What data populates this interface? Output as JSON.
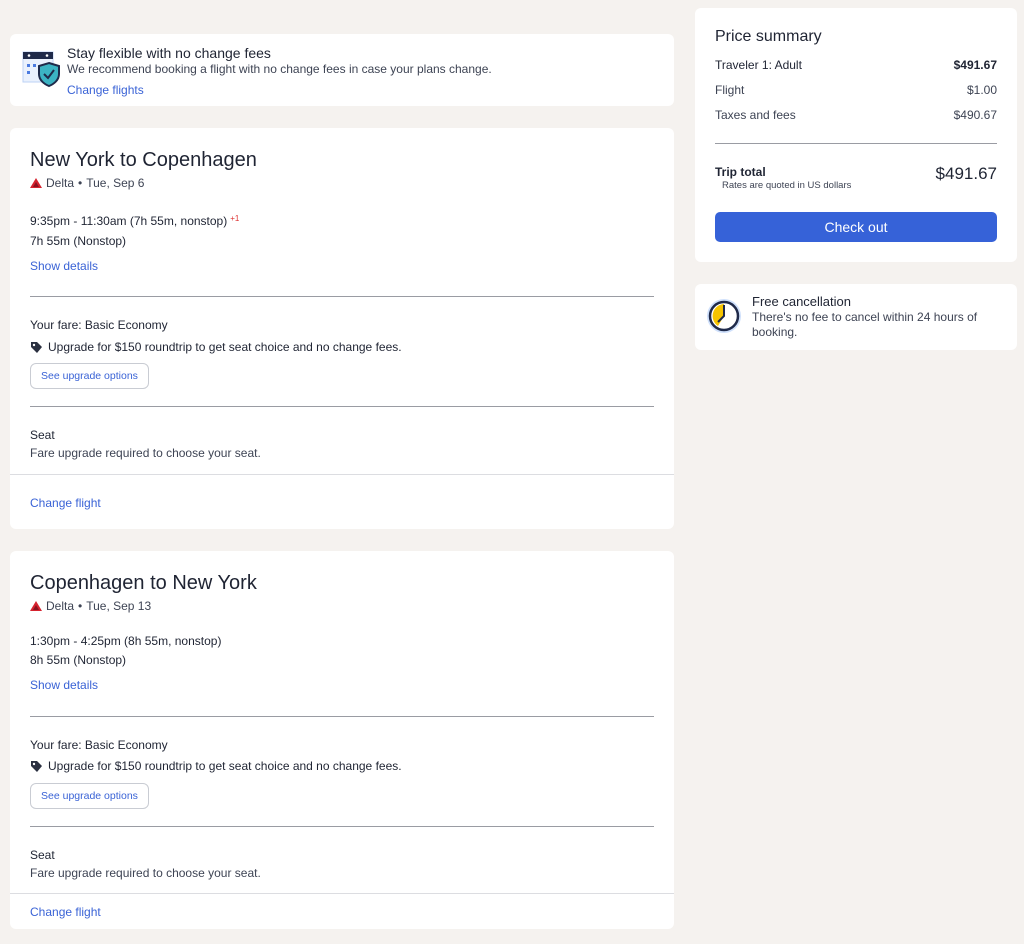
{
  "notice": {
    "title": "Stay flexible with no change fees",
    "description": "We recommend booking a flight with no change fees in case your plans change.",
    "link": "Change flights"
  },
  "flights": [
    {
      "title": "New York to Copenhagen",
      "airline": "Delta",
      "date": "Tue, Sep 6",
      "times": "9:35pm - 11:30am (7h 55m, nonstop)",
      "day_offset": "+1",
      "duration": "7h 55m (Nonstop)",
      "show_details": "Show details",
      "fare": "Your fare: Basic Economy",
      "upgrade": "Upgrade for $150 roundtrip to get seat choice and no change fees.",
      "upgrade_button": "See upgrade options",
      "seat_label": "Seat",
      "seat_desc": "Fare upgrade required to choose your seat.",
      "change": "Change flight"
    },
    {
      "title": "Copenhagen to New York",
      "airline": "Delta",
      "date": "Tue, Sep 13",
      "times": "1:30pm - 4:25pm (8h 55m, nonstop)",
      "day_offset": "",
      "duration": "8h 55m (Nonstop)",
      "show_details": "Show details",
      "fare": "Your fare: Basic Economy",
      "upgrade": "Upgrade for $150 roundtrip to get seat choice and no change fees.",
      "upgrade_button": "See upgrade options",
      "seat_label": "Seat",
      "seat_desc": "Fare upgrade required to choose your seat.",
      "change": "Change flight"
    }
  ],
  "summary": {
    "title": "Price summary",
    "traveler": "Traveler 1: Adult",
    "traveler_price": "$491.67",
    "flight": "Flight",
    "flight_price": "$1.00",
    "taxes": "Taxes and fees",
    "taxes_price": "$490.67",
    "total_label": "Trip total",
    "total_note": "Rates are quoted in US dollars",
    "total": "$491.67",
    "checkout": "Check out"
  },
  "cancellation": {
    "title": "Free cancellation",
    "description": "There's no fee to cancel within 24 hours of booking."
  },
  "colors": {
    "accent": "#3662d8",
    "link": "#3a63d6",
    "delta_red": "#d6232f",
    "background": "#f5f2ef"
  }
}
